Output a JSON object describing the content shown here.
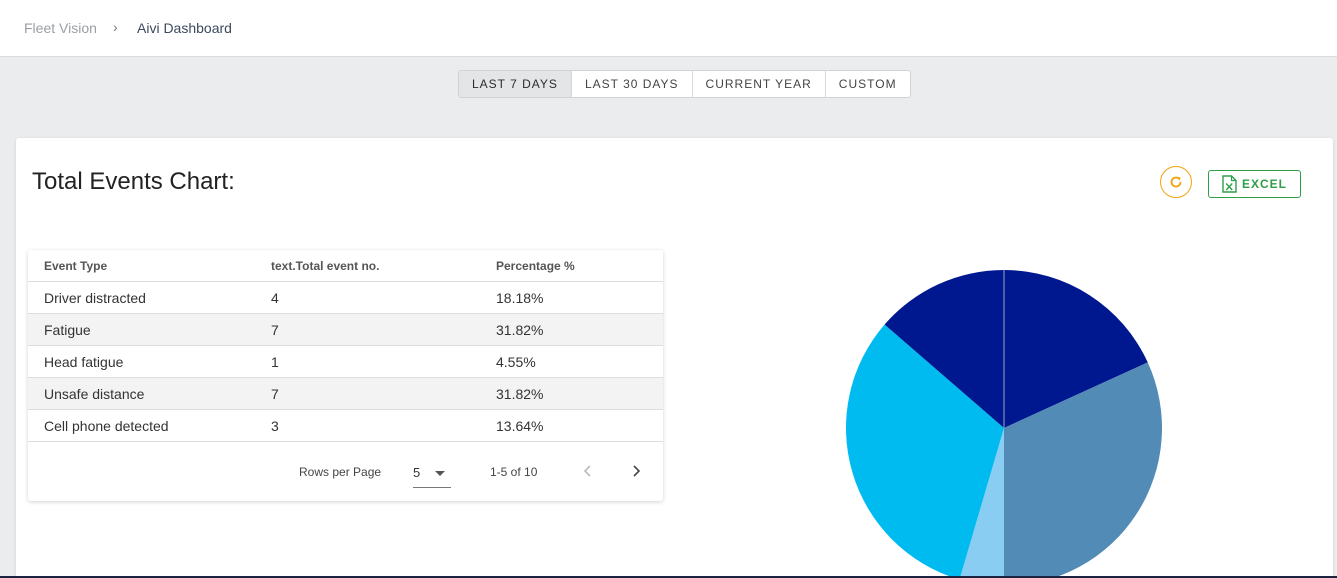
{
  "breadcrumb": {
    "root": "Fleet Vision",
    "separator": "›",
    "current": "Aivi Dashboard"
  },
  "date_range": {
    "options": [
      "LAST 7 DAYS",
      "LAST 30 DAYS",
      "CURRENT YEAR",
      "CUSTOM"
    ],
    "active": "LAST 7 DAYS"
  },
  "card": {
    "title": "Total Events Chart:",
    "refresh_icon": "refresh-icon",
    "excel_label": "EXCEL",
    "excel_icon": "excel-file-icon"
  },
  "table": {
    "headers": [
      "Event Type",
      "text.Total event no.",
      "Percentage %"
    ],
    "rows": [
      [
        "Driver distracted",
        "4",
        "18.18%"
      ],
      [
        "Fatigue",
        "7",
        "31.82%"
      ],
      [
        "Head fatigue",
        "1",
        "4.55%"
      ],
      [
        "Unsafe distance",
        "7",
        "31.82%"
      ],
      [
        "Cell phone detected",
        "3",
        "13.64%"
      ]
    ],
    "rows_per_page_label": "Rows per Page",
    "rows_per_page_value": "5",
    "range_text": "1-5 of 10"
  },
  "colors": {
    "accent_orange": "#f0a30a",
    "excel_green": "#2e9e49"
  },
  "chart_data": {
    "type": "pie",
    "categories": [
      "Driver distracted",
      "Fatigue",
      "Head fatigue",
      "Unsafe distance",
      "Cell phone detected"
    ],
    "values": [
      4,
      7,
      1,
      7,
      3
    ],
    "colors": [
      "#00188f",
      "#528bb5",
      "#8acdf2",
      "#00bbf0",
      "#00188f"
    ]
  }
}
